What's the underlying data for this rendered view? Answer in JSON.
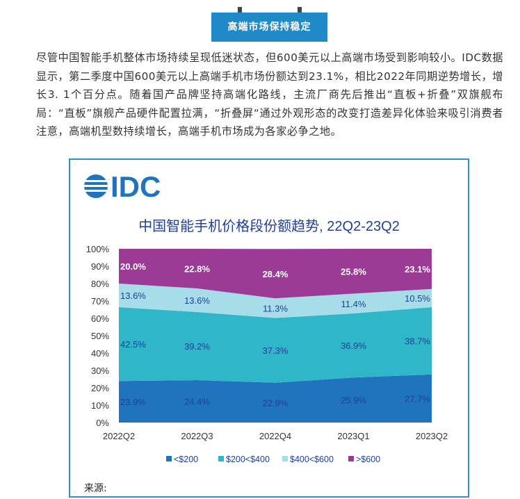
{
  "section_title": "高端市场保持稳定",
  "paragraph": "尽管中国智能手机整体市场持续呈现低迷状态，但600美元以上高端市场受到影响较小。IDC数据显示，第二季度中国600美元以上高端手机市场份额达到23.1%，相比2022年同期逆势增长，增长3. 1个百分点。随着国产品牌坚持高端化路线，主流厂商先后推出“直板+折叠”双旗舰布局：“直板”旗舰产品硬件配置拉满，“折叠屏“通过外观形态的改变打造差异化体验来吸引消费者注意，高端机型数持续增长，高端手机市场成为各家必争之地。",
  "logo_text": "IDC",
  "source_label": "来源:",
  "colors": {
    "banner": "#1f8ac7",
    "frame": "#2f8fcf",
    "title": "#1f3f9c",
    "under200": "#1f74bd",
    "s200_400": "#2fb6c9",
    "s400_600": "#a6dde8",
    "over600": "#9b3b95"
  },
  "chart_data": {
    "type": "area",
    "stacked": true,
    "title": "中国智能手机价格段份额趋势, 22Q2-23Q2",
    "categories": [
      "2022Q2",
      "2022Q3",
      "2022Q4",
      "2023Q1",
      "2023Q2"
    ],
    "y_ticks": [
      "0%",
      "10%",
      "20%",
      "30%",
      "40%",
      "50%",
      "60%",
      "70%",
      "80%",
      "90%",
      "100%"
    ],
    "ylim": [
      0,
      100
    ],
    "legend_position": "bottom",
    "series": [
      {
        "name": "<$200",
        "values": [
          23.9,
          24.4,
          22.9,
          25.9,
          27.7
        ],
        "labels": [
          "23.9%",
          "24.4%",
          "22.9%",
          "25.9%",
          "27.7%"
        ]
      },
      {
        "name": "$200<$400",
        "values": [
          42.5,
          39.2,
          37.3,
          36.9,
          38.7
        ],
        "labels": [
          "42.5%",
          "39.2%",
          "37.3%",
          "36.9%",
          "38.7%"
        ]
      },
      {
        "name": "$400<$600",
        "values": [
          13.6,
          13.6,
          11.3,
          11.4,
          10.5
        ],
        "labels": [
          "13.6%",
          "13.6%",
          "11.3%",
          "11.4%",
          "10.5%"
        ]
      },
      {
        "name": ">$600",
        "values": [
          20.0,
          22.8,
          28.4,
          25.8,
          23.1
        ],
        "labels": [
          "20.0%",
          "22.8%",
          "28.4%",
          "25.8%",
          "23.1%"
        ]
      }
    ]
  }
}
